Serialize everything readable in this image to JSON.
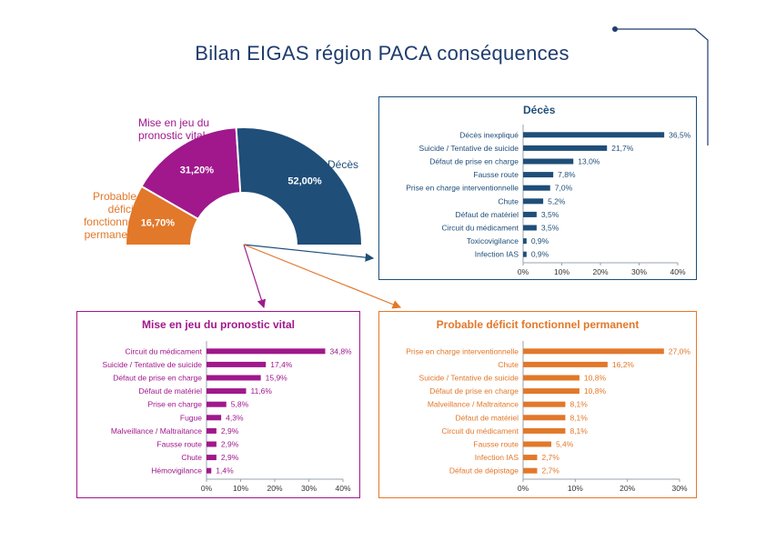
{
  "title": "Bilan EIGAS région PACA conséquences",
  "colors": {
    "navy": "#1f4e79",
    "magenta": "#a0188c",
    "orange": "#e2782a",
    "title": "#1f3c6e"
  },
  "semi_labels": {
    "mise": "Mise en jeu du pronostic vital",
    "deces": "Décès",
    "deficit": "Probable déficit fonctionnel permanent"
  },
  "chart_data": [
    {
      "id": "semi",
      "type": "pie",
      "shape": "half-donut",
      "slices": [
        {
          "name": "Probable déficit fonctionnel permanent",
          "value": 16.7,
          "label": "16,70%",
          "color": "#e2782a"
        },
        {
          "name": "Mise en jeu du pronostic vital",
          "value": 31.2,
          "label": "31,20%",
          "color": "#a0188c"
        },
        {
          "name": "Décès",
          "value": 52.0,
          "label": "52,00%",
          "color": "#1f4e79"
        }
      ]
    },
    {
      "id": "deces",
      "type": "bar",
      "orientation": "horizontal",
      "title": "Décès",
      "color": "#1f4e79",
      "categories": [
        "Décès inexpliqué",
        "Suicide / Tentative de suicide",
        "Défaut de prise en charge",
        "Fausse route",
        "Prise en charge interventionnelle",
        "Chute",
        "Défaut de matériel",
        "Circuit du médicament",
        "Toxicovigilance",
        "Infection IAS"
      ],
      "values": [
        36.5,
        21.7,
        13.0,
        7.8,
        7.0,
        5.2,
        3.5,
        3.5,
        0.9,
        0.9
      ],
      "value_labels": [
        "36,5%",
        "21,7%",
        "13,0%",
        "7,8%",
        "7,0%",
        "5,2%",
        "3,5%",
        "3,5%",
        "0,9%",
        "0,9%"
      ],
      "xlim": [
        0,
        40
      ],
      "ticks": [
        "0%",
        "10%",
        "20%",
        "30%",
        "40%"
      ]
    },
    {
      "id": "mise",
      "type": "bar",
      "orientation": "horizontal",
      "title": "Mise en jeu du pronostic vital",
      "color": "#a0188c",
      "categories": [
        "Circuit du médicament",
        "Suicide / Tentative de suicide",
        "Défaut de prise en charge",
        "Défaut de matériel",
        "Prise en charge",
        "Fugue",
        "Malveillance / Maltraitance",
        "Fausse route",
        "Chute",
        "Hémovigilance"
      ],
      "values": [
        34.8,
        17.4,
        15.9,
        11.6,
        5.8,
        4.3,
        2.9,
        2.9,
        2.9,
        1.4
      ],
      "value_labels": [
        "34,8%",
        "17,4%",
        "15,9%",
        "11,6%",
        "5,8%",
        "4,3%",
        "2,9%",
        "2,9%",
        "2,9%",
        "1,4%"
      ],
      "xlim": [
        0,
        40
      ],
      "ticks": [
        "0%",
        "10%",
        "20%",
        "30%",
        "40%"
      ]
    },
    {
      "id": "deficit",
      "type": "bar",
      "orientation": "horizontal",
      "title": "Probable déficit fonctionnel permanent",
      "color": "#e2782a",
      "categories": [
        "Prise en charge interventionnelle",
        "Chute",
        "Suicide / Tentative de suicide",
        "Défaut de prise en charge",
        "Malveillance / Maltraitance",
        "Défaut de matériel",
        "Circuit du médicament",
        "Fausse route",
        "Infection IAS",
        "Défaut de dépistage"
      ],
      "values": [
        27.0,
        16.2,
        10.8,
        10.8,
        8.1,
        8.1,
        8.1,
        5.4,
        2.7,
        2.7
      ],
      "value_labels": [
        "27,0%",
        "16,2%",
        "10,8%",
        "10,8%",
        "8,1%",
        "8,1%",
        "8,1%",
        "5,4%",
        "2,7%",
        "2,7%"
      ],
      "xlim": [
        0,
        30
      ],
      "ticks": [
        "0%",
        "10%",
        "20%",
        "30%"
      ]
    }
  ]
}
